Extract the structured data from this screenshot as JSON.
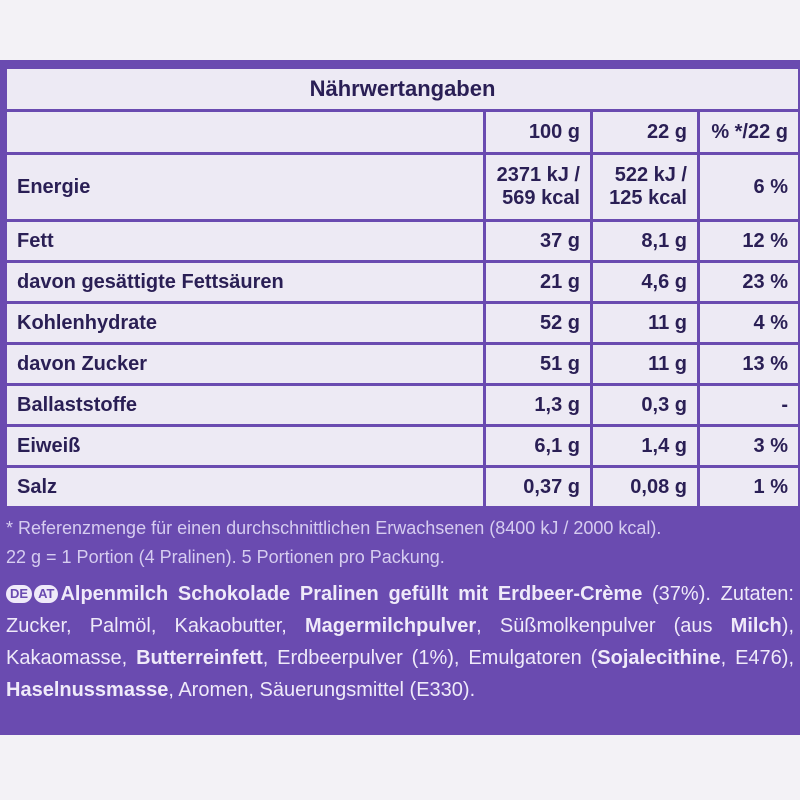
{
  "table": {
    "title": "Nährwertangaben",
    "columns": [
      "100 g",
      "22 g",
      "% */22 g"
    ],
    "rows": [
      {
        "label": "Energie",
        "values": [
          [
            "2371 kJ /",
            "569 kcal"
          ],
          [
            "522 kJ /",
            "125 kcal"
          ],
          [
            "6 %"
          ]
        ]
      },
      {
        "label": "Fett",
        "values": [
          [
            "37 g"
          ],
          [
            "8,1 g"
          ],
          [
            "12 %"
          ]
        ]
      },
      {
        "label": "davon gesättigte Fettsäuren",
        "values": [
          [
            "21 g"
          ],
          [
            "4,6 g"
          ],
          [
            "23 %"
          ]
        ]
      },
      {
        "label": "Kohlenhydrate",
        "values": [
          [
            "52 g"
          ],
          [
            "11 g"
          ],
          [
            "4 %"
          ]
        ]
      },
      {
        "label": "davon Zucker",
        "values": [
          [
            "51 g"
          ],
          [
            "11 g"
          ],
          [
            "13 %"
          ]
        ]
      },
      {
        "label": "Ballaststoffe",
        "values": [
          [
            "1,3 g"
          ],
          [
            "0,3 g"
          ],
          [
            "-"
          ]
        ]
      },
      {
        "label": "Eiweiß",
        "values": [
          [
            "6,1 g"
          ],
          [
            "1,4 g"
          ],
          [
            "3 %"
          ]
        ]
      },
      {
        "label": "Salz",
        "values": [
          [
            "0,37 g"
          ],
          [
            "0,08 g"
          ],
          [
            "1 %"
          ]
        ]
      }
    ]
  },
  "footnote": [
    "* Referenzmenge für einen durchschnittlichen Erwachsenen (8400 kJ / 2000 kcal).",
    "22 g = 1 Portion (4 Pralinen). 5 Portionen pro Packung."
  ],
  "ingredients": {
    "badges": [
      "DE",
      "AT"
    ],
    "segments": [
      {
        "text": "Alpenmilch Schokolade Pralinen gefüllt mit Erdbeer-Crème",
        "bold": true
      },
      {
        "text": " (37%). Zutaten: Zucker, Palmöl, Kakaobutter, ",
        "bold": false
      },
      {
        "text": "Magermilchpulver",
        "bold": true
      },
      {
        "text": ", Süßmolkenpulver (aus ",
        "bold": false
      },
      {
        "text": "Milch",
        "bold": true
      },
      {
        "text": "), Kakaomasse, ",
        "bold": false
      },
      {
        "text": "Butterreinfett",
        "bold": true
      },
      {
        "text": ", Erdbeerpulver (1%), Emulgatoren (",
        "bold": false
      },
      {
        "text": "Sojalecithine",
        "bold": true
      },
      {
        "text": ", E476), ",
        "bold": false
      },
      {
        "text": "Haselnussmasse",
        "bold": true
      },
      {
        "text": ", Aromen, Säuerungsmittel (E330).",
        "bold": false
      }
    ]
  }
}
